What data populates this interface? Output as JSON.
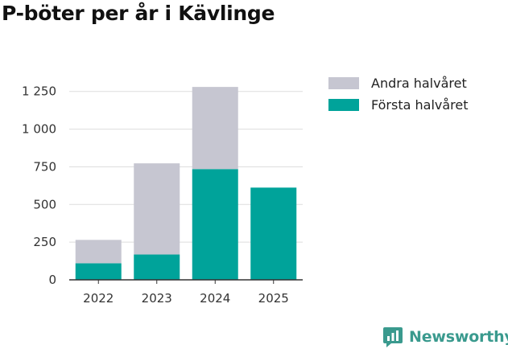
{
  "title": "P-böter per år i Kävlinge",
  "legend": [
    {
      "label": "Andra halvåret",
      "color": "#c6c6d1"
    },
    {
      "label": "Första halvåret",
      "color": "#00a39a"
    }
  ],
  "brand": {
    "name": "Newsworthy",
    "icon": "newsworthy-logo-icon",
    "color": "#3a9a8e"
  },
  "chart_data": {
    "type": "bar",
    "stacked": true,
    "title": "P-böter per år i Kävlinge",
    "xlabel": "",
    "ylabel": "",
    "categories": [
      "2022",
      "2023",
      "2024",
      "2025"
    ],
    "series": [
      {
        "name": "Första halvåret",
        "color": "#00a39a",
        "values": [
          110,
          168,
          735,
          612
        ]
      },
      {
        "name": "Andra halvåret",
        "color": "#c6c6d1",
        "values": [
          155,
          605,
          545,
          0
        ]
      }
    ],
    "ylim": [
      0,
      1350
    ],
    "yticks": [
      0,
      250,
      500,
      750,
      1000,
      1250
    ],
    "ytick_labels": [
      "0",
      "250",
      "500",
      "750",
      "1 000",
      "1 250"
    ],
    "grid": true,
    "legend_position": "top-right"
  }
}
